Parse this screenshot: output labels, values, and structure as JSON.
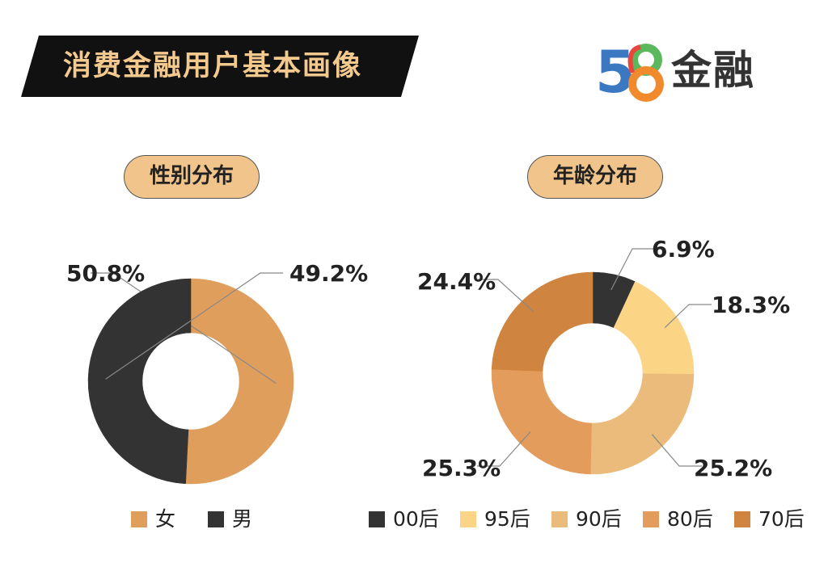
{
  "header": {
    "title": "消费金融用户基本画像"
  },
  "logo": {
    "number_left": "5",
    "number_right": "8",
    "text": "金融",
    "colors": [
      "#3b78c2",
      "#e8453c",
      "#f08a2c",
      "#5bb85d"
    ]
  },
  "colors": {
    "banner_bg": "#111111",
    "title": "#f3c98e",
    "pill_bg": "#f0c48a"
  },
  "chart_data": [
    {
      "type": "pie",
      "variant": "donut",
      "title": "性别分布",
      "series": [
        {
          "name": "女",
          "value": 50.8,
          "label": "50.8%",
          "color": "#e09e5d"
        },
        {
          "name": "男",
          "value": 49.2,
          "label": "49.2%",
          "color": "#333333"
        }
      ],
      "legend_position": "bottom"
    },
    {
      "type": "pie",
      "variant": "donut",
      "title": "年龄分布",
      "series": [
        {
          "name": "00后",
          "value": 6.9,
          "label": "6.9%",
          "color": "#333333"
        },
        {
          "name": "95后",
          "value": 18.3,
          "label": "18.3%",
          "color": "#fbd486"
        },
        {
          "name": "90后",
          "value": 25.2,
          "label": "25.2%",
          "color": "#ebbb7c"
        },
        {
          "name": "80后",
          "value": 25.3,
          "label": "25.3%",
          "color": "#e39c5c"
        },
        {
          "name": "70后",
          "value": 24.4,
          "label": "24.4%",
          "color": "#cf843f"
        }
      ],
      "legend_position": "bottom"
    }
  ]
}
